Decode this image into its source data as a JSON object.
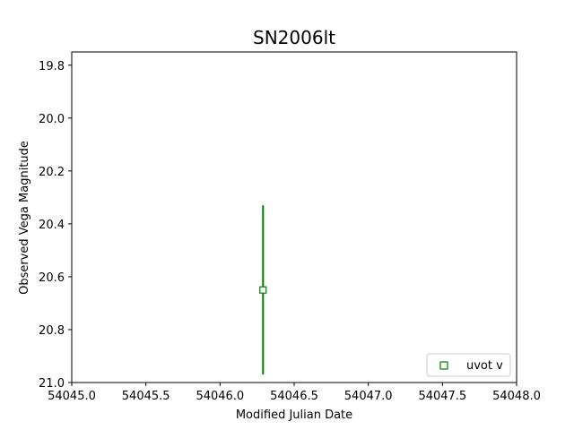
{
  "chart_data": {
    "type": "scatter",
    "title": "SN2006lt",
    "xlabel": "Modified Julian Date",
    "ylabel": "Observed Vega Magnitude",
    "xlim": [
      54045.0,
      54048.0
    ],
    "ylim": [
      21.0,
      19.75
    ],
    "y_inverted": true,
    "x_ticks": [
      54045.0,
      54045.5,
      54046.0,
      54046.5,
      54047.0,
      54047.5,
      54048.0
    ],
    "x_tick_labels": [
      "54045.0",
      "54045.5",
      "54046.0",
      "54046.5",
      "54047.0",
      "54047.5",
      "54048.0"
    ],
    "y_ticks": [
      19.8,
      20.0,
      20.2,
      20.4,
      20.6,
      20.8,
      21.0
    ],
    "y_tick_labels": [
      "19.8",
      "20.0",
      "20.2",
      "20.4",
      "20.6",
      "20.8",
      "21.0"
    ],
    "grid": false,
    "legend_position": "lower-right",
    "series": [
      {
        "name": "uvot v",
        "color": "#008000",
        "marker": "open-square",
        "points": [
          {
            "x": 54046.29,
            "y": 20.65,
            "y_err_low": 0.32,
            "y_err_high": 0.32
          }
        ]
      }
    ]
  }
}
